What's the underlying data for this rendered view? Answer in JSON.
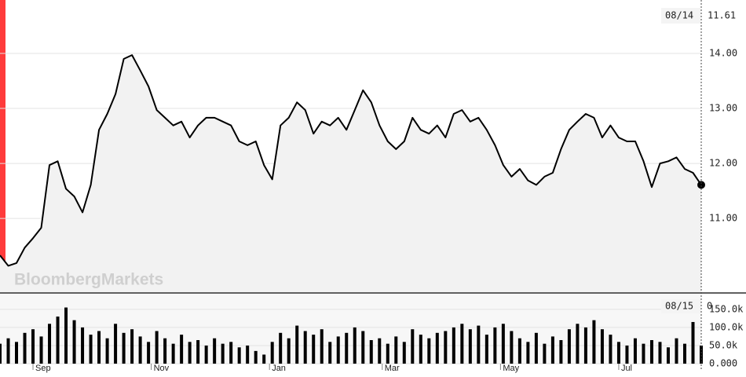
{
  "watermark": "BloombergMarkets",
  "chart_data": [
    {
      "type": "line",
      "color": "#000000",
      "fill": "#f2f2f2",
      "grid": true,
      "last_label": {
        "date": "08/14",
        "value": 11.61
      },
      "xlim": [
        0,
        255
      ],
      "ylim": [
        9.66,
        14.97
      ],
      "yticks": [
        {
          "value": 11,
          "label": "11.00"
        },
        {
          "value": 12,
          "label": "12.00"
        },
        {
          "value": 13,
          "label": "13.00"
        },
        {
          "value": 14,
          "label": "14.00"
        }
      ],
      "x": [
        0,
        3,
        6,
        9,
        12,
        15,
        18,
        21,
        24,
        27,
        30,
        33,
        36,
        39,
        42,
        45,
        48,
        51,
        54,
        57,
        60,
        63,
        66,
        69,
        72,
        75,
        78,
        81,
        84,
        87,
        90,
        93,
        96,
        99,
        102,
        105,
        108,
        111,
        114,
        117,
        120,
        123,
        126,
        129,
        132,
        135,
        138,
        141,
        144,
        147,
        150,
        153,
        156,
        159,
        162,
        165,
        168,
        171,
        174,
        177,
        180,
        183,
        186,
        189,
        192,
        195,
        198,
        201,
        204,
        207,
        210,
        213,
        216,
        219,
        222,
        225,
        228,
        231,
        234,
        237,
        240,
        243,
        246,
        249,
        252,
        255
      ],
      "values": [
        10.33,
        10.14,
        10.19,
        10.47,
        10.64,
        10.83,
        11.97,
        12.04,
        11.54,
        11.4,
        11.11,
        11.61,
        12.61,
        12.9,
        13.26,
        13.9,
        13.97,
        13.69,
        13.4,
        12.97,
        12.83,
        12.69,
        12.76,
        12.47,
        12.69,
        12.83,
        12.83,
        12.76,
        12.69,
        12.4,
        12.33,
        12.4,
        11.97,
        11.71,
        12.69,
        12.83,
        13.11,
        12.97,
        12.54,
        12.76,
        12.69,
        12.83,
        12.61,
        12.97,
        13.33,
        13.11,
        12.69,
        12.4,
        12.26,
        12.4,
        12.83,
        12.61,
        12.54,
        12.69,
        12.47,
        12.9,
        12.97,
        12.76,
        12.83,
        12.61,
        12.33,
        11.97,
        11.76,
        11.9,
        11.69,
        11.61,
        11.76,
        11.83,
        12.26,
        12.61,
        12.76,
        12.9,
        12.83,
        12.47,
        12.69,
        12.47,
        12.4,
        12.4,
        12.04,
        11.57,
        12.0,
        12.04,
        12.11,
        11.9,
        11.83,
        11.61
      ]
    },
    {
      "type": "bar",
      "color": "#000000",
      "grid": true,
      "last_label": {
        "date": "08/15",
        "value": 0
      },
      "xlim": [
        0,
        255
      ],
      "ylim": [
        0,
        180000
      ],
      "yticks": [
        {
          "value": 0,
          "label": "0.000"
        },
        {
          "value": 50000,
          "label": "50.0k"
        },
        {
          "value": 100000,
          "label": "100.0k"
        },
        {
          "value": 150000,
          "label": "150.0k"
        }
      ],
      "xticks": [
        {
          "value": 12,
          "label": "Sep"
        },
        {
          "value": 55,
          "label": "Nov"
        },
        {
          "value": 98,
          "label": "Jan"
        },
        {
          "value": 139,
          "label": "Mar"
        },
        {
          "value": 182,
          "label": "May"
        },
        {
          "value": 225,
          "label": "Jul"
        }
      ],
      "x": [
        0,
        3,
        6,
        9,
        12,
        15,
        18,
        21,
        24,
        27,
        30,
        33,
        36,
        39,
        42,
        45,
        48,
        51,
        54,
        57,
        60,
        63,
        66,
        69,
        72,
        75,
        78,
        81,
        84,
        87,
        90,
        93,
        96,
        99,
        102,
        105,
        108,
        111,
        114,
        117,
        120,
        123,
        126,
        129,
        132,
        135,
        138,
        141,
        144,
        147,
        150,
        153,
        156,
        159,
        162,
        165,
        168,
        171,
        174,
        177,
        180,
        183,
        186,
        189,
        192,
        195,
        198,
        201,
        204,
        207,
        210,
        213,
        216,
        219,
        222,
        225,
        228,
        231,
        234,
        237,
        240,
        243,
        246,
        249,
        252,
        255
      ],
      "values": [
        55000,
        70000,
        60000,
        85000,
        95000,
        75000,
        110000,
        130000,
        155000,
        120000,
        100000,
        80000,
        90000,
        70000,
        110000,
        85000,
        95000,
        75000,
        60000,
        90000,
        70000,
        55000,
        80000,
        60000,
        65000,
        50000,
        70000,
        55000,
        60000,
        45000,
        50000,
        35000,
        25000,
        60000,
        85000,
        70000,
        105000,
        90000,
        80000,
        95000,
        60000,
        75000,
        85000,
        100000,
        90000,
        65000,
        70000,
        55000,
        75000,
        60000,
        95000,
        80000,
        70000,
        85000,
        90000,
        100000,
        110000,
        95000,
        105000,
        80000,
        100000,
        110000,
        90000,
        70000,
        60000,
        85000,
        55000,
        75000,
        65000,
        95000,
        110000,
        100000,
        120000,
        95000,
        80000,
        60000,
        50000,
        70000,
        55000,
        65000,
        60000,
        45000,
        70000,
        55000,
        115000,
        50000
      ]
    }
  ]
}
